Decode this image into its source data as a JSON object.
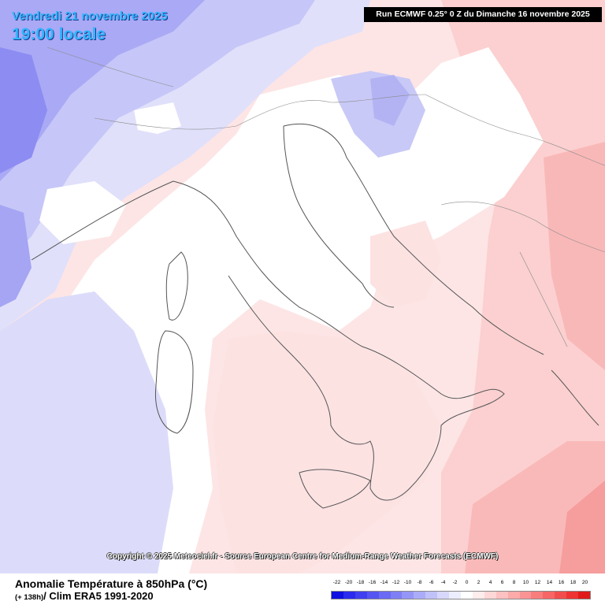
{
  "header": {
    "date": "Vendredi 21 novembre 2025",
    "time": "19:00 locale",
    "run": "Run ECMWF 0.25° 0 Z du Dimanche 16 novembre 2025"
  },
  "map": {
    "copyright": "Copyright © 2025 Meteociel.fr - Source European Centre for Medium-Range Weather Forecasts (ECMWF)"
  },
  "footer": {
    "title": "Anomalie Température à 850hPa (°C)",
    "lead": "(+ 138h)",
    "subtitle": "/ Clim ERA5 1991-2020"
  },
  "legend": {
    "labels": [
      "-22",
      "-20",
      "-18",
      "-16",
      "-14",
      "-12",
      "-10",
      "-8",
      "-6",
      "-4",
      "-2",
      "0",
      "2",
      "4",
      "6",
      "8",
      "10",
      "12",
      "14",
      "16",
      "18",
      "20"
    ],
    "colors": [
      "#1010e0",
      "#2b2bee",
      "#4040f0",
      "#5555f2",
      "#6a6af4",
      "#7f7ff5",
      "#9595f7",
      "#abacf8",
      "#c1c1fa",
      "#d7d7fc",
      "#ecedfe",
      "#ffffff",
      "#ffecec",
      "#ffd7d7",
      "#fdc1c1",
      "#fcaaaa",
      "#fa9494",
      "#f87d7d",
      "#f66666",
      "#f24d4d",
      "#ee3333",
      "#e01a1a"
    ]
  }
}
